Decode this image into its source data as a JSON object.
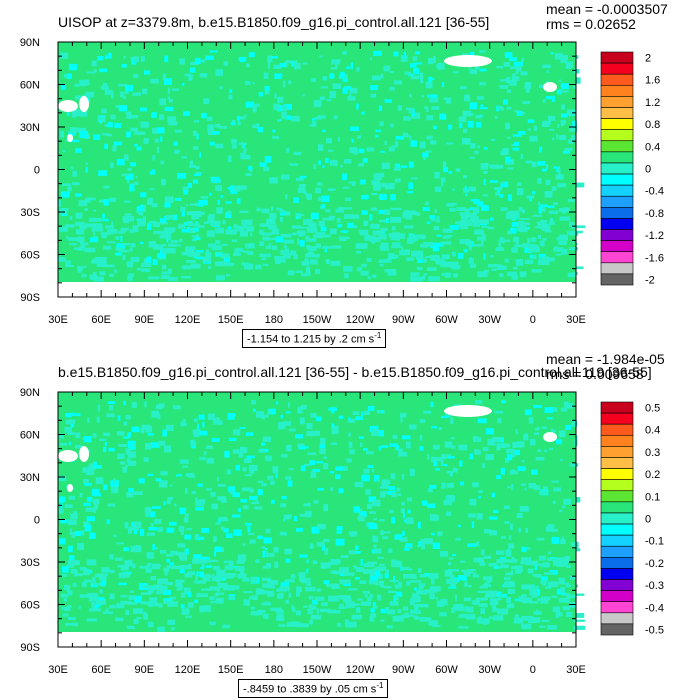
{
  "colors": {
    "ocean_near_zero": "#28e67a",
    "land_missing": "#ffffff",
    "frame": "#000000"
  },
  "chart_data": [
    {
      "type": "heatmap",
      "title": "UISOP at z=3379.8m, b.e15.B1850.f09_g16.pi_control.all.121 [36-55]",
      "mean_text": "mean = -0.0003507",
      "rms_text": "rms = 0.02652",
      "note": "-1.154 to 1.215 by .2 cm s",
      "note_exp": "-1",
      "x_ticks": [
        "30E",
        "60E",
        "90E",
        "120E",
        "150E",
        "180",
        "150W",
        "120W",
        "90W",
        "60W",
        "30W",
        "0",
        "30E"
      ],
      "y_ticks": [
        "90N",
        "60N",
        "30N",
        "0",
        "30S",
        "60S",
        "90S"
      ],
      "colorbar": {
        "labels": [
          "2",
          "1.6",
          "1.2",
          "0.8",
          "0.4",
          "0",
          "-0.4",
          "-0.8",
          "-1.2",
          "-1.6",
          "-2"
        ],
        "colors": [
          "#c8001e",
          "#f5001e",
          "#ff5a1e",
          "#ff821e",
          "#ffa030",
          "#ffbe46",
          "#ffff00",
          "#b4ff1e",
          "#5ae632",
          "#28e67a",
          "#28f0c8",
          "#00ffff",
          "#14d2ff",
          "#1ea0ff",
          "#0a6eeb",
          "#0000f0",
          "#8200d2",
          "#d200c8",
          "#ff46d2",
          "#c8c8c8",
          "#646464"
        ]
      }
    },
    {
      "type": "heatmap",
      "title": "b.e15.B1850.f09_g16.pi_control.all.121 [36-55] - b.e15.B1850.f09_g16.pi_control.all.119 [36-55]",
      "mean_text": "mean = -1.984e-05",
      "rms_text": "rms = 0.009658",
      "note": "-.8459 to .3839 by .05 cm s",
      "note_exp": "-1",
      "x_ticks": [
        "30E",
        "60E",
        "90E",
        "120E",
        "150E",
        "180",
        "150W",
        "120W",
        "90W",
        "60W",
        "30W",
        "0",
        "30E"
      ],
      "y_ticks": [
        "90N",
        "60N",
        "30N",
        "0",
        "30S",
        "60S",
        "90S"
      ],
      "colorbar": {
        "labels": [
          "0.5",
          "0.4",
          "0.3",
          "0.2",
          "0.1",
          "0",
          "-0.1",
          "-0.2",
          "-0.3",
          "-0.4",
          "-0.5"
        ],
        "colors": [
          "#c8001e",
          "#f5001e",
          "#ff5a1e",
          "#ff821e",
          "#ffa030",
          "#ffbe46",
          "#ffff00",
          "#b4ff1e",
          "#5ae632",
          "#28e67a",
          "#28f0c8",
          "#00ffff",
          "#14d2ff",
          "#1ea0ff",
          "#0a6eeb",
          "#0000f0",
          "#8200d2",
          "#d200c8",
          "#ff46d2",
          "#c8c8c8",
          "#646464"
        ]
      }
    }
  ]
}
